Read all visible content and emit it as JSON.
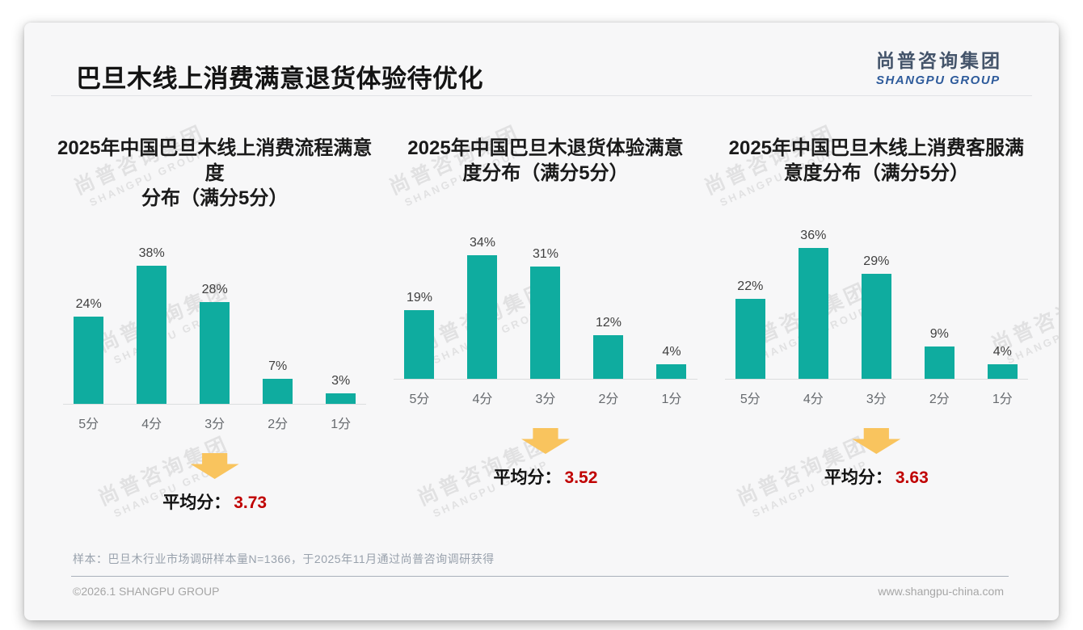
{
  "slide": {
    "title": "巴旦木线上消费满意退货体验待优化",
    "logo_cn": "尚普咨询集团",
    "logo_en": "SHANGPU GROUP",
    "watermark_cn": "尚普咨询集团",
    "watermark_en": "SHANGPU GROUP",
    "average_label": "平均分：",
    "note": "样本：巴旦木行业市场调研样本量N=1366，于2025年11月通过尚普咨询调研获得",
    "footer_left": "©2026.1 SHANGPU GROUP",
    "footer_right": "www.shangpu-china.com"
  },
  "colors": {
    "bar": "#0FAC9F",
    "arrow": "#F9C45E",
    "average_value": "#C00000",
    "logo_cn": "#44546A",
    "logo_en": "#2E5B9B"
  },
  "chart_data": [
    {
      "type": "bar",
      "title": "2025年中国巴旦木线上消费流程满意度\n分布（满分5分）",
      "categories": [
        "5分",
        "4分",
        "3分",
        "2分",
        "1分"
      ],
      "values": [
        24,
        38,
        28,
        7,
        3
      ],
      "value_labels": [
        "24%",
        "38%",
        "28%",
        "7%",
        "3%"
      ],
      "average": "3.73",
      "xlabel": "",
      "ylabel": "",
      "ylim": [
        0,
        40
      ],
      "grid": false,
      "legend": false
    },
    {
      "type": "bar",
      "title": "2025年中国巴旦木退货体验满意\n度分布（满分5分）",
      "categories": [
        "5分",
        "4分",
        "3分",
        "2分",
        "1分"
      ],
      "values": [
        19,
        34,
        31,
        12,
        4
      ],
      "value_labels": [
        "19%",
        "34%",
        "31%",
        "12%",
        "4%"
      ],
      "average": "3.52",
      "xlabel": "",
      "ylabel": "",
      "ylim": [
        0,
        40
      ],
      "grid": false,
      "legend": false
    },
    {
      "type": "bar",
      "title": "2025年中国巴旦木线上消费客服满\n意度分布（满分5分）",
      "categories": [
        "5分",
        "4分",
        "3分",
        "2分",
        "1分"
      ],
      "values": [
        22,
        36,
        29,
        9,
        4
      ],
      "value_labels": [
        "22%",
        "36%",
        "29%",
        "9%",
        "4%"
      ],
      "average": "3.63",
      "xlabel": "",
      "ylabel": "",
      "ylim": [
        0,
        40
      ],
      "grid": false,
      "legend": false
    }
  ]
}
